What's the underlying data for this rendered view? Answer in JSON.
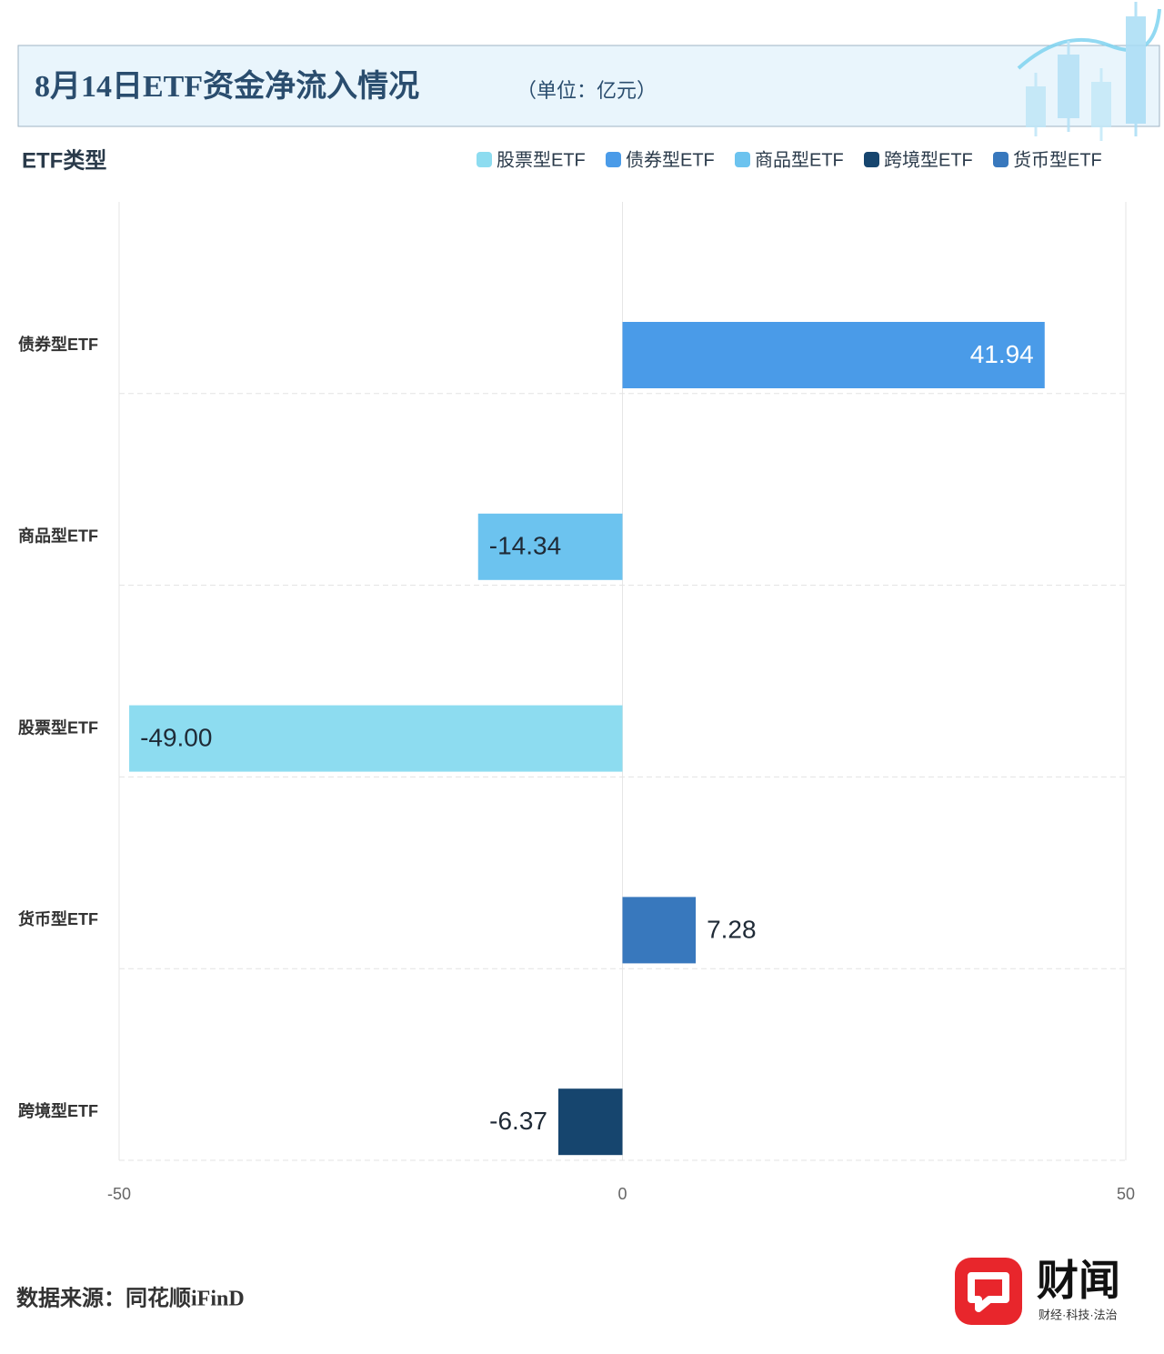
{
  "chart_data": {
    "type": "hbar",
    "title": "8月14日ETF资金净流入情况",
    "subtitle": "（单位：亿元）",
    "y_label": "ETF类型",
    "categories": [
      "债券型ETF",
      "商品型ETF",
      "股票型ETF",
      "货币型ETF",
      "跨境型ETF"
    ],
    "series": [
      {
        "name": "股票型ETF",
        "color": "#8ddcf0",
        "values": [
          null,
          null,
          -49,
          null,
          null
        ],
        "value_labels": [
          null,
          null,
          "-49.00",
          null,
          null
        ]
      },
      {
        "name": "债券型ETF",
        "color": "#4a9be8",
        "values": [
          41.94,
          null,
          null,
          null,
          null
        ]
      },
      {
        "name": "商品型ETF",
        "color": "#6cc3ef",
        "values": [
          null,
          -14.34,
          null,
          null,
          null
        ]
      },
      {
        "name": "跨境型ETF",
        "color": "#16456e",
        "values": [
          null,
          null,
          null,
          null,
          -6.37
        ]
      },
      {
        "name": "货币型ETF",
        "color": "#3878bd",
        "values": [
          null,
          null,
          null,
          7.28,
          null
        ]
      }
    ],
    "xlim": [
      -50,
      50
    ],
    "xticks": [
      -50,
      0,
      50
    ],
    "grid": true,
    "source": "数据来源：同花顺iFinD",
    "brand": "财闻",
    "slogan": "财经·科技·法治"
  }
}
